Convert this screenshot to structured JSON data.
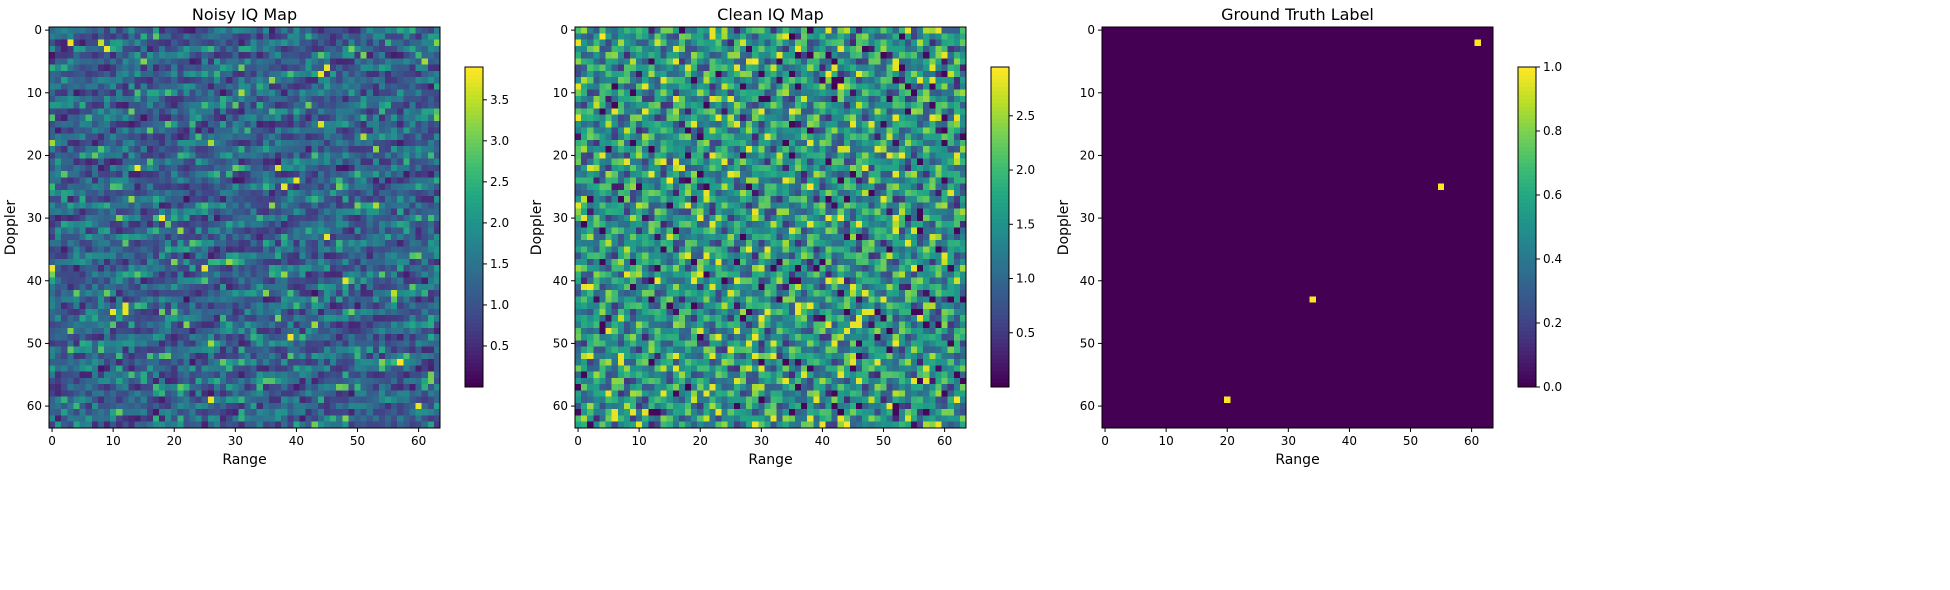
{
  "chart_data": [
    {
      "type": "heatmap",
      "title": "Noisy IQ Map",
      "xlabel": "Range",
      "ylabel": "Doppler",
      "grid_size": [
        64,
        64
      ],
      "x_ticks": [
        0,
        10,
        20,
        30,
        40,
        50,
        60
      ],
      "y_ticks": [
        0,
        10,
        20,
        30,
        40,
        50,
        60
      ],
      "colormap": "viridis",
      "vmin": 0.0,
      "vmax": 3.9,
      "colorbar_ticks": [
        0.5,
        1.0,
        1.5,
        2.0,
        2.5,
        3.0,
        3.5
      ],
      "colorbar_tick_labels": [
        "0.5",
        "1.0",
        "1.5",
        "2.0",
        "2.5",
        "3.0",
        "3.5"
      ],
      "pattern": "noisy",
      "seed": 11,
      "bright_cells": [
        [
          3,
          2
        ],
        [
          9,
          3
        ],
        [
          45,
          6
        ],
        [
          44,
          7
        ],
        [
          40,
          24
        ],
        [
          38,
          25
        ],
        [
          45,
          33
        ],
        [
          0,
          38
        ],
        [
          25,
          38
        ],
        [
          10,
          45
        ],
        [
          12,
          45
        ],
        [
          60,
          60
        ],
        [
          26,
          59
        ]
      ]
    },
    {
      "type": "heatmap",
      "title": "Clean IQ Map",
      "xlabel": "Range",
      "ylabel": "Doppler",
      "grid_size": [
        64,
        64
      ],
      "x_ticks": [
        0,
        10,
        20,
        30,
        40,
        50,
        60
      ],
      "y_ticks": [
        0,
        10,
        20,
        30,
        40,
        50,
        60
      ],
      "colormap": "viridis",
      "vmin": 0.0,
      "vmax": 2.95,
      "colorbar_ticks": [
        0.5,
        1.0,
        1.5,
        2.0,
        2.5
      ],
      "colorbar_tick_labels": [
        "0.5",
        "1.0",
        "1.5",
        "2.0",
        "2.5"
      ],
      "pattern": "periodic",
      "seed": 23,
      "bright_cells": []
    },
    {
      "type": "heatmap",
      "title": "Ground Truth Label",
      "xlabel": "Range",
      "ylabel": "Doppler",
      "grid_size": [
        64,
        64
      ],
      "x_ticks": [
        0,
        10,
        20,
        30,
        40,
        50,
        60
      ],
      "y_ticks": [
        0,
        10,
        20,
        30,
        40,
        50,
        60
      ],
      "colormap": "viridis",
      "vmin": 0.0,
      "vmax": 1.0,
      "colorbar_ticks": [
        0.0,
        0.2,
        0.4,
        0.6,
        0.8,
        1.0
      ],
      "colorbar_tick_labels": [
        "0.0",
        "0.2",
        "0.4",
        "0.6",
        "0.8",
        "1.0"
      ],
      "pattern": "sparse",
      "seed": 0,
      "targets": [
        [
          61,
          2
        ],
        [
          55,
          25
        ],
        [
          34,
          43
        ],
        [
          20,
          59
        ]
      ]
    }
  ]
}
